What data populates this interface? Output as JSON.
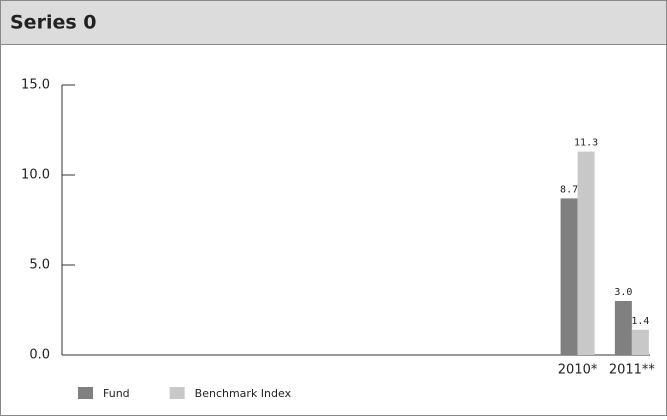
{
  "chart_data": {
    "type": "bar",
    "title": "Series 0",
    "categories": [
      null,
      null,
      null,
      null,
      null,
      null,
      null,
      null,
      null,
      "2010*",
      "2011**"
    ],
    "series": [
      {
        "name": "Fund",
        "color": "#808080",
        "values": [
          null,
          null,
          null,
          null,
          null,
          null,
          null,
          null,
          null,
          8.7,
          3.0
        ],
        "value_labels": [
          null,
          null,
          null,
          null,
          null,
          null,
          null,
          null,
          null,
          "8.7",
          "3.0"
        ]
      },
      {
        "name": "Benchmark Index",
        "color": "#c8c8c8",
        "values": [
          null,
          null,
          null,
          null,
          null,
          null,
          null,
          null,
          null,
          11.3,
          1.4
        ],
        "value_labels": [
          null,
          null,
          null,
          null,
          null,
          null,
          null,
          null,
          null,
          "11.3",
          "1.4"
        ]
      }
    ],
    "ylim": [
      0,
      15
    ],
    "yticks": [
      {
        "value": 0,
        "label": "0.0"
      },
      {
        "value": 5,
        "label": "5.0"
      },
      {
        "value": 10,
        "label": "10.0"
      },
      {
        "value": 15,
        "label": "15.0"
      }
    ],
    "grid": false
  }
}
